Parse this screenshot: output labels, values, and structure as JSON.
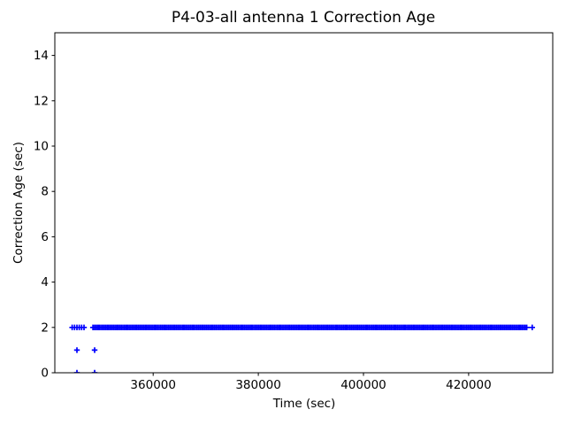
{
  "chart_data": {
    "type": "scatter",
    "title": "P4-03-all antenna 1 Correction Age",
    "xlabel": "Time (sec)",
    "ylabel": "Correction Age (sec)",
    "marker": "+",
    "marker_color": "#0000ff",
    "marker_size_px": 6.4,
    "axis_color": "#000000",
    "background_color": "#ffffff",
    "grid": false,
    "legend": null,
    "xlim": [
      341300,
      436000
    ],
    "ylim": [
      0,
      15
    ],
    "xticks": [
      360000,
      380000,
      400000,
      420000
    ],
    "yticks": [
      0,
      2,
      4,
      6,
      8,
      10,
      12,
      14
    ],
    "series": [
      {
        "name": "correction-age",
        "runs": [
          {
            "y": 2,
            "t_start": 344600,
            "t_end": 347000,
            "t_step": 450
          },
          {
            "y": 2,
            "t_start": 348550,
            "t_end": 431250,
            "t_step": 300
          }
        ],
        "points": [
          [
            345500,
            1
          ],
          [
            348870,
            1
          ],
          [
            345500,
            0
          ],
          [
            348870,
            0
          ],
          [
            432100,
            2
          ]
        ]
      }
    ]
  }
}
